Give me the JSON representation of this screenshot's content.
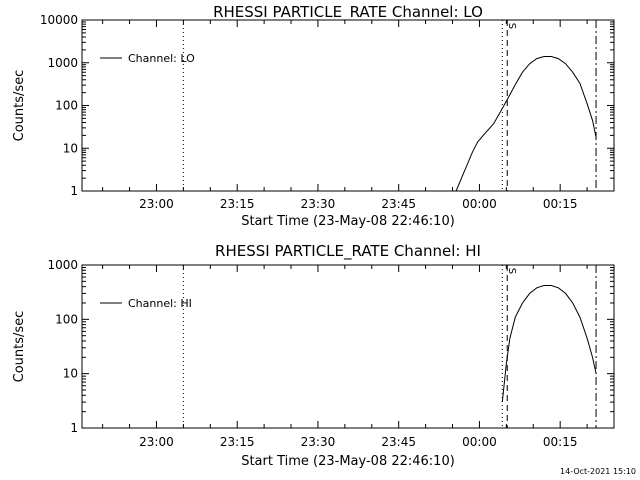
{
  "timestamp": "14-Oct-2021 15:10",
  "colors": {
    "background": "#ffffff",
    "foreground": "#000000"
  },
  "chart_data": [
    {
      "type": "line",
      "title": "RHESSI PARTICLE_RATE Channel: LO",
      "xlabel": "Start Time (23-May-08 22:46:10)",
      "ylabel": "Counts/sec",
      "y_scale": "log",
      "ylim": [
        1,
        10000
      ],
      "y_ticks": [
        {
          "value": 1,
          "label": "1"
        },
        {
          "value": 10,
          "label": "10"
        },
        {
          "value": 100,
          "label": "100"
        },
        {
          "value": 1000,
          "label": "1000"
        },
        {
          "value": 10000,
          "label": "10000"
        }
      ],
      "xlim": [
        "22:46:10",
        "00:25:00"
      ],
      "x_ticks": [
        {
          "value": "23:00",
          "label": "23:00"
        },
        {
          "value": "23:15",
          "label": "23:15"
        },
        {
          "value": "23:30",
          "label": "23:30"
        },
        {
          "value": "23:45",
          "label": "23:45"
        },
        {
          "value": "00:00",
          "label": "00:00"
        },
        {
          "value": "00:15",
          "label": "00:15"
        }
      ],
      "legend": {
        "position": "top-left",
        "entries": [
          "Channel: LO"
        ]
      },
      "series": [
        {
          "name": "Channel: LO",
          "x": [
            "23:55:00",
            "23:55:40",
            "23:56:40",
            "23:57:40",
            "23:58:40",
            "23:59:40",
            "00:01:00",
            "00:02:40",
            "00:04:00",
            "00:05:20",
            "00:06:40",
            "00:08:00",
            "00:09:20",
            "00:10:40",
            "00:12:00",
            "00:13:20",
            "00:14:40",
            "00:16:00",
            "00:17:20",
            "00:18:40",
            "00:20:00",
            "00:21:00",
            "00:21:40"
          ],
          "y": [
            1,
            1,
            2,
            4,
            8,
            14,
            22,
            38,
            75,
            150,
            310,
            600,
            950,
            1250,
            1400,
            1400,
            1250,
            950,
            600,
            330,
            110,
            45,
            18
          ]
        }
      ],
      "vertical_lines": [
        {
          "x": "23:05:00",
          "style": "dotted"
        },
        {
          "x": "00:04:15",
          "style": "dotted"
        },
        {
          "x": "00:05:10",
          "style": "dashed",
          "label": "S"
        },
        {
          "x": "00:21:40",
          "style": "dash-dot"
        }
      ]
    },
    {
      "type": "line",
      "title": "RHESSI PARTICLE_RATE Channel: HI",
      "xlabel": "Start Time (23-May-08 22:46:10)",
      "ylabel": "Counts/sec",
      "y_scale": "log",
      "ylim": [
        1,
        1000
      ],
      "y_ticks": [
        {
          "value": 1,
          "label": "1"
        },
        {
          "value": 10,
          "label": "10"
        },
        {
          "value": 100,
          "label": "100"
        },
        {
          "value": 1000,
          "label": "1000"
        }
      ],
      "xlim": [
        "22:46:10",
        "00:25:00"
      ],
      "x_ticks": [
        {
          "value": "23:00",
          "label": "23:00"
        },
        {
          "value": "23:15",
          "label": "23:15"
        },
        {
          "value": "23:30",
          "label": "23:30"
        },
        {
          "value": "23:45",
          "label": "23:45"
        },
        {
          "value": "00:00",
          "label": "00:00"
        },
        {
          "value": "00:15",
          "label": "00:15"
        }
      ],
      "legend": {
        "position": "top-left",
        "entries": [
          "Channel: HI"
        ]
      },
      "series": [
        {
          "name": "Channel: HI",
          "x": [
            "00:04:15",
            "00:05:00",
            "00:05:40",
            "00:06:40",
            "00:08:00",
            "00:09:20",
            "00:10:40",
            "00:12:00",
            "00:13:20",
            "00:14:40",
            "00:16:00",
            "00:17:20",
            "00:18:40",
            "00:20:00",
            "00:21:00",
            "00:21:40"
          ],
          "y": [
            3,
            15,
            45,
            110,
            200,
            300,
            380,
            420,
            420,
            380,
            300,
            200,
            110,
            45,
            20,
            10
          ]
        }
      ],
      "vertical_lines": [
        {
          "x": "23:05:00",
          "style": "dotted"
        },
        {
          "x": "00:04:15",
          "style": "dotted"
        },
        {
          "x": "00:05:10",
          "style": "dashed",
          "label": "S"
        },
        {
          "x": "00:21:40",
          "style": "dash-dot"
        }
      ]
    }
  ]
}
